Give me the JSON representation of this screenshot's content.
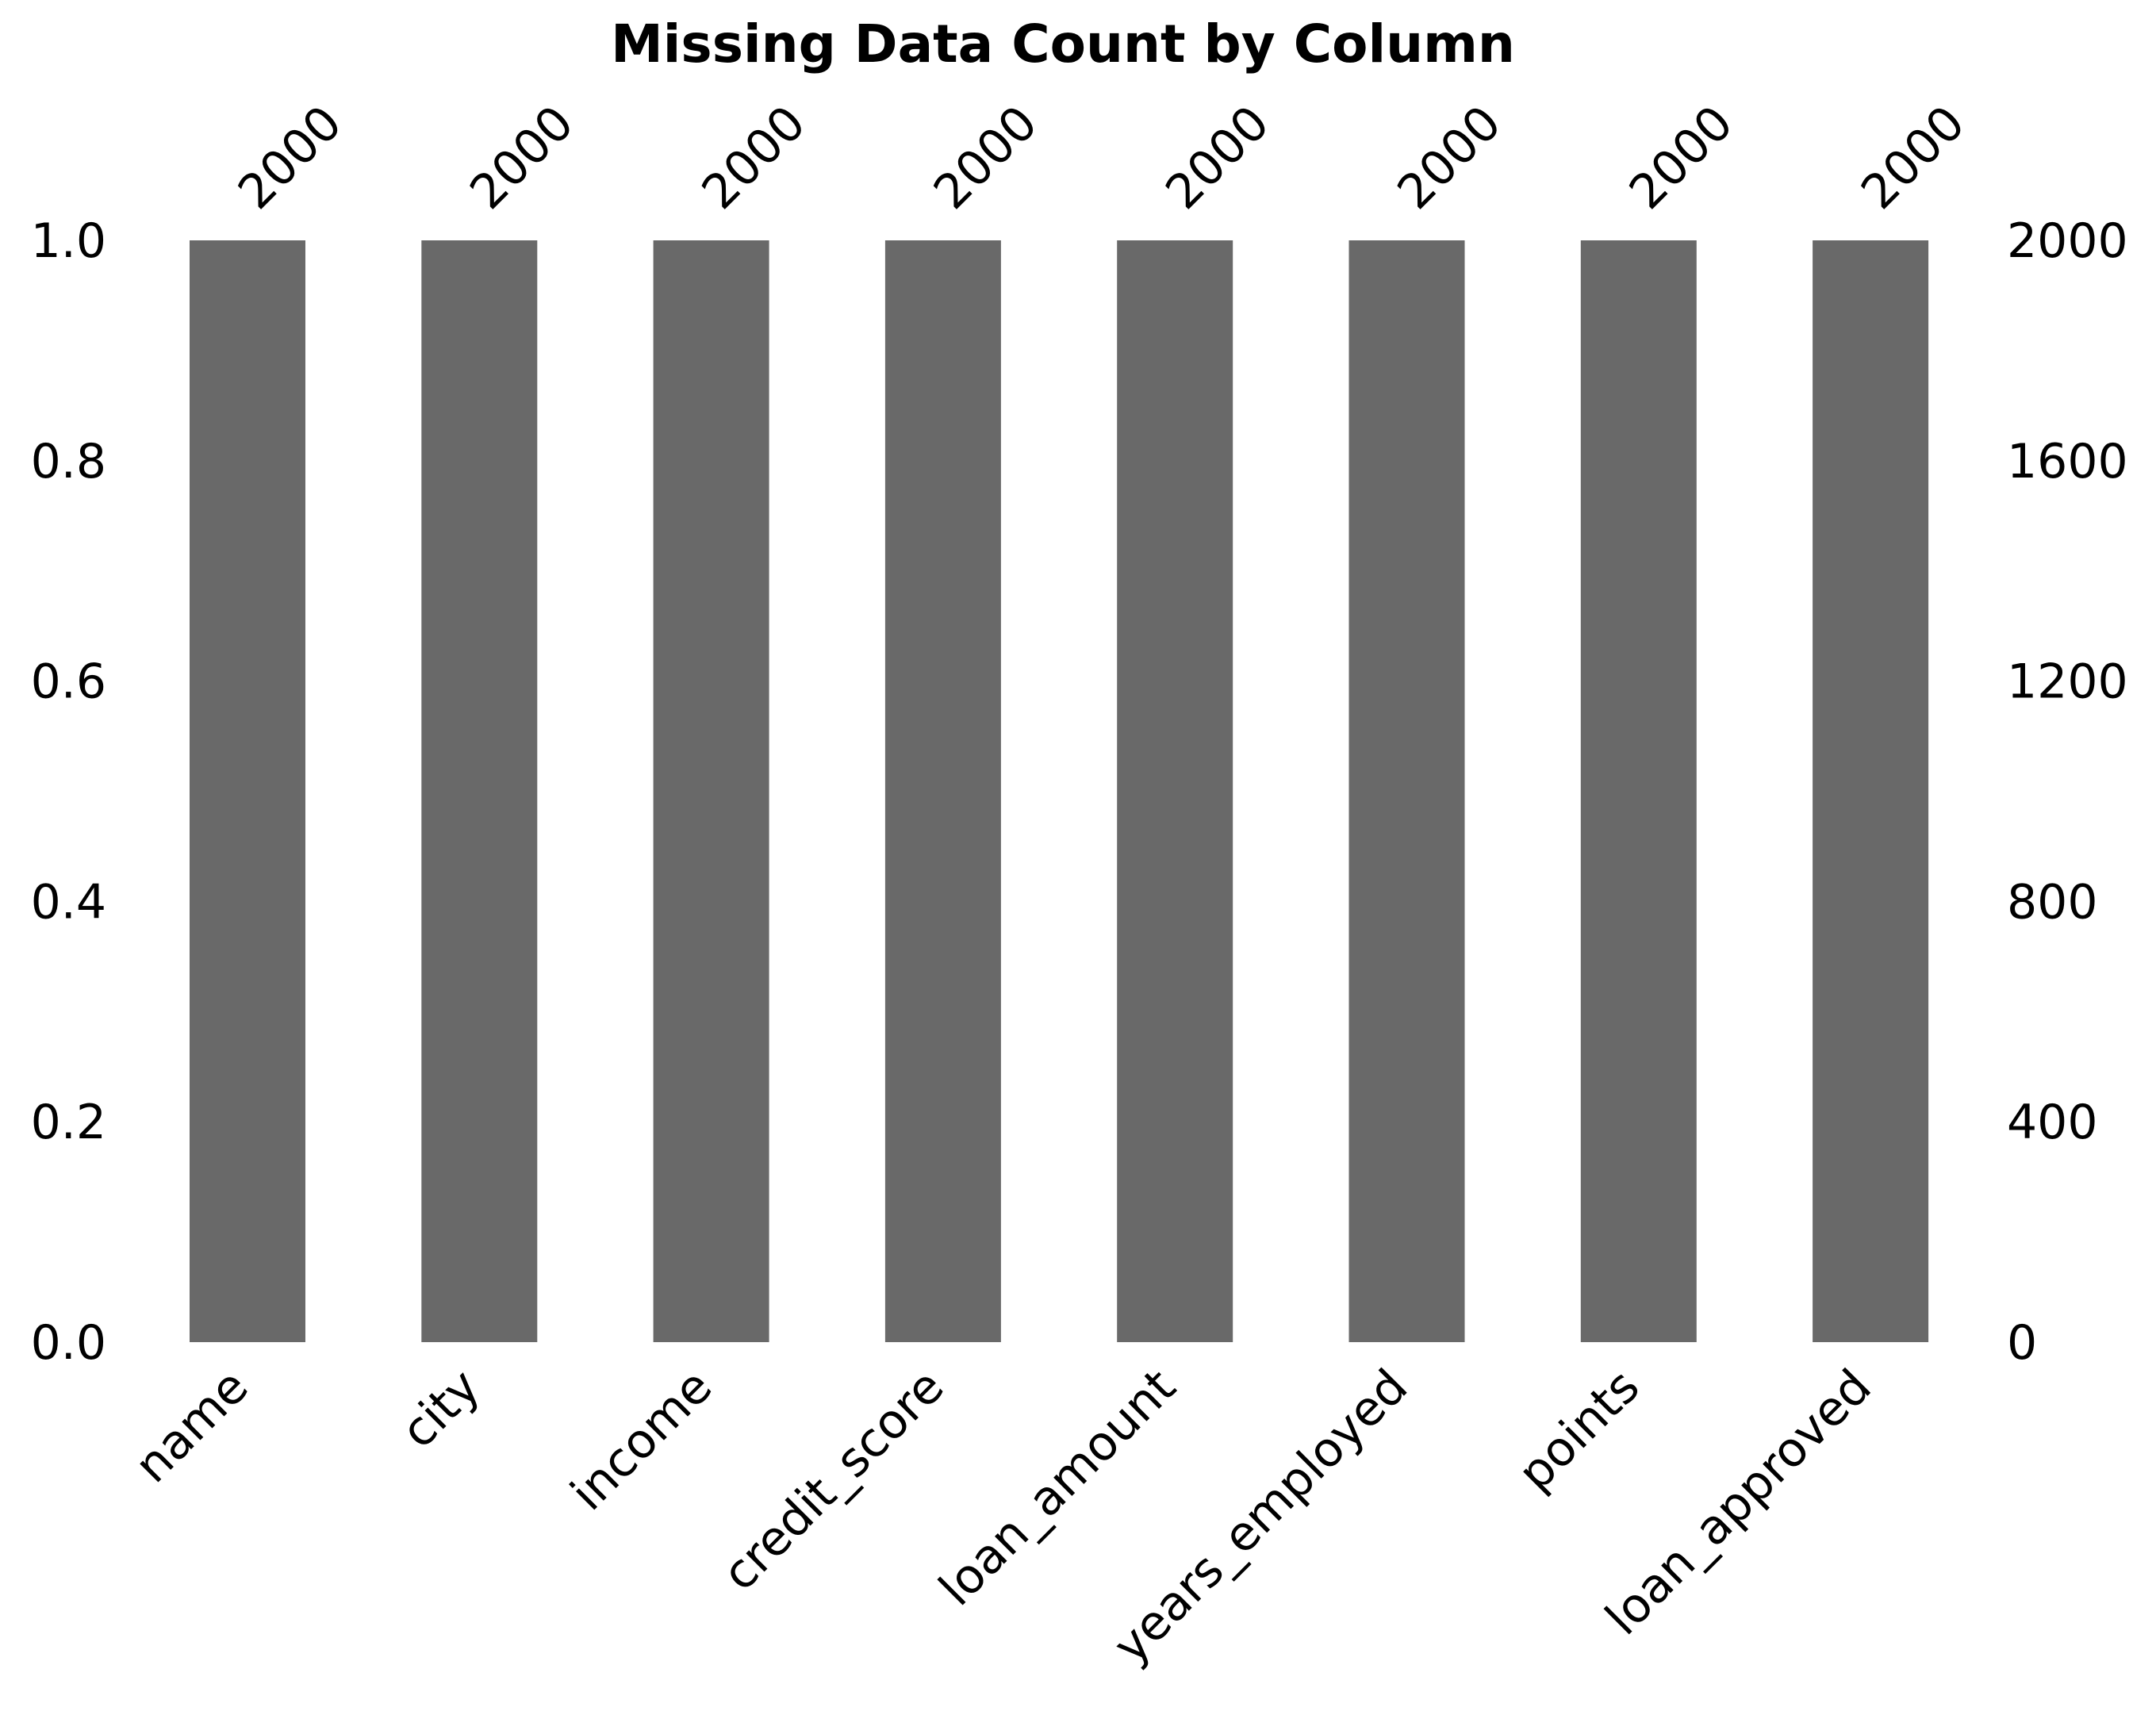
{
  "chart_data": {
    "type": "bar",
    "title": "Missing Data Count by Column",
    "xlabel": "",
    "ylabel": "",
    "categories": [
      "name",
      "city",
      "income",
      "credit_score",
      "loan_amount",
      "years_employed",
      "points",
      "loan_approved"
    ],
    "values": [
      1.0,
      1.0,
      1.0,
      1.0,
      1.0,
      1.0,
      1.0,
      1.0
    ],
    "counts": [
      "2000",
      "2000",
      "2000",
      "2000",
      "2000",
      "2000",
      "2000",
      "2000"
    ],
    "ylim": [
      0,
      1.0
    ],
    "left_ticks": [
      "0.0",
      "0.2",
      "0.4",
      "0.6",
      "0.8",
      "1.0"
    ],
    "right_ticks": [
      "0",
      "400",
      "800",
      "1200",
      "1600",
      "2000"
    ],
    "right_axis_max": 2000,
    "grid": false,
    "legend": "none",
    "bar_color": "#696969"
  }
}
